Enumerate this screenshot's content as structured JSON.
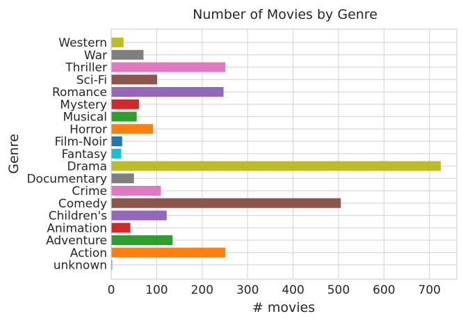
{
  "chart_data": {
    "type": "bar",
    "orientation": "horizontal",
    "title": "Number of Movies by Genre",
    "xlabel": "# movies",
    "ylabel": "Genre",
    "xlim": [
      0,
      760
    ],
    "xticks": [
      0,
      100,
      200,
      300,
      400,
      500,
      600,
      700
    ],
    "grid": true,
    "categories": [
      "unknown",
      "Action",
      "Adventure",
      "Animation",
      "Children's",
      "Comedy",
      "Crime",
      "Documentary",
      "Drama",
      "Fantasy",
      "Film-Noir",
      "Horror",
      "Musical",
      "Mystery",
      "Romance",
      "Sci-Fi",
      "Thriller",
      "War",
      "Western"
    ],
    "values": [
      2,
      251,
      135,
      42,
      122,
      505,
      109,
      50,
      725,
      22,
      24,
      92,
      56,
      61,
      247,
      101,
      251,
      71,
      27
    ],
    "colors": [
      "#1f77b4",
      "#ff7f0e",
      "#2ca02c",
      "#d62728",
      "#9467bd",
      "#8c564b",
      "#e377c2",
      "#7f7f7f",
      "#bcbd22",
      "#17becf",
      "#1f77b4",
      "#ff7f0e",
      "#2ca02c",
      "#d62728",
      "#9467bd",
      "#8c564b",
      "#e377c2",
      "#7f7f7f",
      "#bcbd22"
    ]
  }
}
